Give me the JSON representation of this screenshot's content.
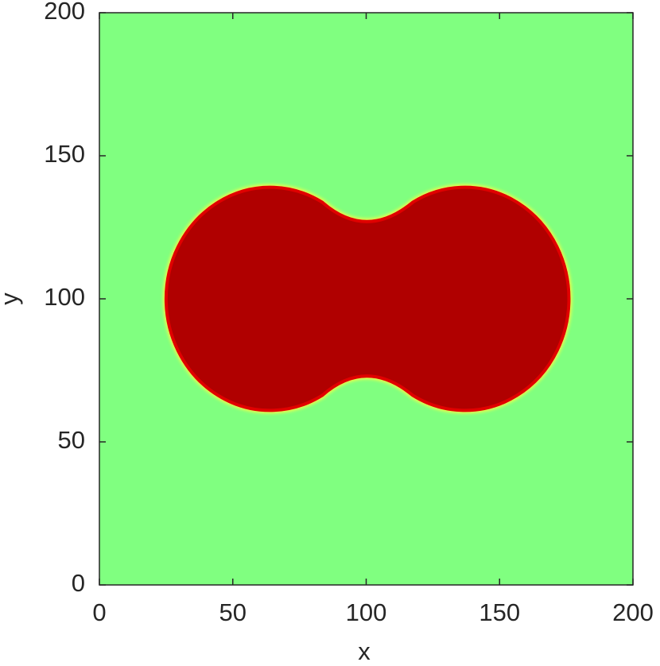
{
  "chart_data": {
    "type": "phase-field",
    "xlabel": "x",
    "ylabel": "y",
    "xlim": [
      0,
      200
    ],
    "ylim": [
      0,
      200
    ],
    "xticks": [
      0,
      50,
      100,
      150,
      200
    ],
    "yticks": [
      0,
      50,
      100,
      150,
      200
    ],
    "background_color": "#80ff80",
    "fill_color": "#b00000",
    "edge_color": "#ffff40",
    "circles": [
      {
        "cx": 64,
        "cy": 100,
        "r": 39
      },
      {
        "cx": 137,
        "cy": 100,
        "r": 39
      }
    ],
    "neck": {
      "x": 100,
      "top": 127,
      "bottom": 73
    }
  }
}
